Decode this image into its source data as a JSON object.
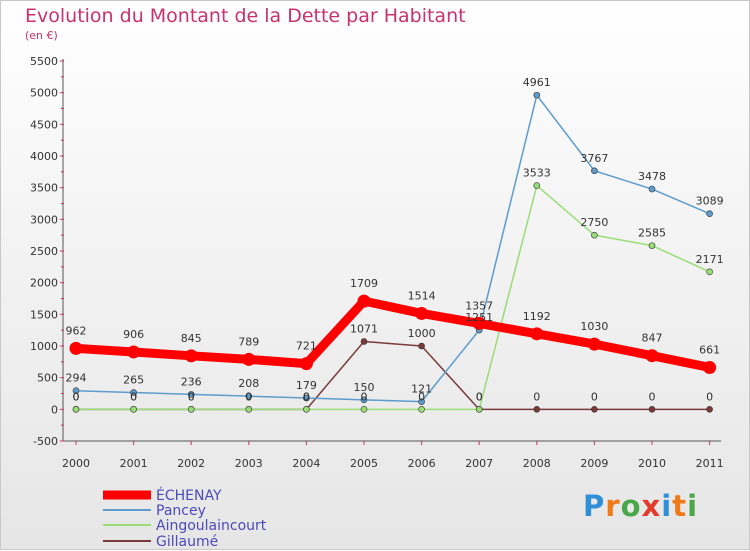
{
  "title": "Evolution du Montant de la Dette par Habitant",
  "subtitle": "(en €)",
  "logo_text": "Proxiti",
  "chart_data": {
    "type": "line",
    "ylim": [
      -500,
      5500
    ],
    "yticks": [
      -500,
      0,
      500,
      1000,
      1500,
      2000,
      2500,
      3000,
      3500,
      4000,
      4500,
      5000,
      5500
    ],
    "categories": [
      "2000",
      "2001",
      "2002",
      "2003",
      "2004",
      "2005",
      "2006",
      "2007",
      "2008",
      "2009",
      "2010",
      "2011"
    ],
    "grid": false,
    "legend_position": "bottom-left",
    "series": [
      {
        "name": "ÉCHENAY",
        "color": "#ff0000",
        "values": [
          962,
          906,
          845,
          789,
          721,
          1709,
          1514,
          1357,
          1192,
          1030,
          847,
          661
        ]
      },
      {
        "name": "Pancey",
        "color": "#5d9ccc",
        "values": [
          294,
          265,
          236,
          208,
          179,
          150,
          121,
          1251,
          4961,
          3767,
          3478,
          3089
        ]
      },
      {
        "name": "Aingoulaincourt",
        "color": "#99dd77",
        "values": [
          0,
          0,
          0,
          0,
          0,
          0,
          0,
          0,
          3533,
          2750,
          2585,
          2171
        ]
      },
      {
        "name": "Gillaumé",
        "color": "#7a3a3a",
        "values": [
          0,
          0,
          0,
          0,
          0,
          1071,
          1000,
          0,
          0,
          0,
          0,
          0
        ]
      }
    ]
  }
}
